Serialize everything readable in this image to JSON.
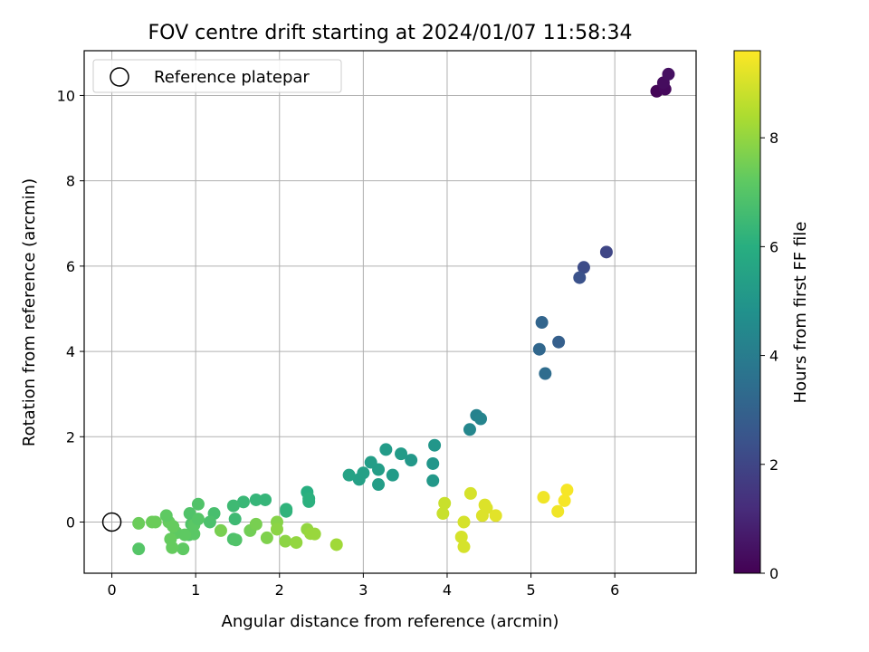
{
  "chart_data": {
    "type": "scatter",
    "title": "FOV centre drift starting at 2024/01/07 11:58:34",
    "xlabel": "Angular distance from reference (arcmin)",
    "ylabel": "Rotation from reference (arcmin)",
    "colorbar_label": "Hours from first FF file",
    "xlim": [
      -0.33,
      6.97
    ],
    "ylim": [
      -1.2,
      11.05
    ],
    "xticks": [
      0,
      1,
      2,
      3,
      4,
      5,
      6
    ],
    "yticks": [
      0,
      2,
      4,
      6,
      8,
      10
    ],
    "colorbar_range": [
      0,
      9.6
    ],
    "colorbar_ticks": [
      0,
      2,
      4,
      6,
      8
    ],
    "colormap": "viridis",
    "grid": true,
    "legend": {
      "placement": "top-left",
      "entries": [
        "Reference platepar"
      ]
    },
    "reference_point": {
      "x": 0,
      "y": 0
    },
    "points": [
      {
        "x": 6.5,
        "y": 10.1,
        "c": 0.1
      },
      {
        "x": 6.6,
        "y": 10.15,
        "c": 0.2
      },
      {
        "x": 6.58,
        "y": 10.3,
        "c": 0.3
      },
      {
        "x": 6.64,
        "y": 10.5,
        "c": 0.4
      },
      {
        "x": 5.9,
        "y": 6.33,
        "c": 2.0
      },
      {
        "x": 5.63,
        "y": 5.97,
        "c": 2.2
      },
      {
        "x": 5.58,
        "y": 5.73,
        "c": 2.4
      },
      {
        "x": 5.33,
        "y": 4.22,
        "c": 2.9
      },
      {
        "x": 5.13,
        "y": 4.68,
        "c": 3.1
      },
      {
        "x": 5.1,
        "y": 4.05,
        "c": 3.2
      },
      {
        "x": 5.17,
        "y": 3.48,
        "c": 3.4
      },
      {
        "x": 4.35,
        "y": 2.5,
        "c": 4.2
      },
      {
        "x": 4.4,
        "y": 2.42,
        "c": 4.3
      },
      {
        "x": 4.27,
        "y": 2.17,
        "c": 4.4
      },
      {
        "x": 3.85,
        "y": 1.8,
        "c": 5.0
      },
      {
        "x": 3.83,
        "y": 1.37,
        "c": 5.0
      },
      {
        "x": 3.83,
        "y": 0.97,
        "c": 5.1
      },
      {
        "x": 3.57,
        "y": 1.45,
        "c": 5.1
      },
      {
        "x": 3.45,
        "y": 1.6,
        "c": 5.2
      },
      {
        "x": 3.27,
        "y": 1.7,
        "c": 5.2
      },
      {
        "x": 3.35,
        "y": 1.1,
        "c": 5.2
      },
      {
        "x": 3.18,
        "y": 1.23,
        "c": 5.3
      },
      {
        "x": 3.18,
        "y": 0.88,
        "c": 5.3
      },
      {
        "x": 3.09,
        "y": 1.4,
        "c": 5.3
      },
      {
        "x": 3.0,
        "y": 1.15,
        "c": 5.4
      },
      {
        "x": 2.95,
        "y": 1.0,
        "c": 5.4
      },
      {
        "x": 2.83,
        "y": 1.1,
        "c": 5.5
      },
      {
        "x": 2.33,
        "y": 0.7,
        "c": 6.0
      },
      {
        "x": 2.35,
        "y": 0.55,
        "c": 6.1
      },
      {
        "x": 2.35,
        "y": 0.48,
        "c": 6.1
      },
      {
        "x": 2.08,
        "y": 0.3,
        "c": 6.2
      },
      {
        "x": 2.08,
        "y": 0.25,
        "c": 6.2
      },
      {
        "x": 1.83,
        "y": 0.52,
        "c": 6.3
      },
      {
        "x": 1.72,
        "y": 0.52,
        "c": 6.3
      },
      {
        "x": 1.57,
        "y": 0.47,
        "c": 6.4
      },
      {
        "x": 1.45,
        "y": 0.38,
        "c": 6.5
      },
      {
        "x": 1.47,
        "y": 0.07,
        "c": 6.5
      },
      {
        "x": 1.45,
        "y": -0.4,
        "c": 6.8
      },
      {
        "x": 1.48,
        "y": -0.42,
        "c": 6.9
      },
      {
        "x": 1.22,
        "y": 0.2,
        "c": 6.7
      },
      {
        "x": 1.17,
        "y": 0.0,
        "c": 6.8
      },
      {
        "x": 1.03,
        "y": 0.42,
        "c": 6.9
      },
      {
        "x": 0.93,
        "y": 0.2,
        "c": 6.9
      },
      {
        "x": 0.95,
        "y": -0.05,
        "c": 6.9
      },
      {
        "x": 0.92,
        "y": -0.3,
        "c": 7.0
      },
      {
        "x": 0.98,
        "y": -0.28,
        "c": 7.1
      },
      {
        "x": 0.98,
        "y": -0.07,
        "c": 7.1
      },
      {
        "x": 1.03,
        "y": 0.07,
        "c": 7.0
      },
      {
        "x": 0.87,
        "y": -0.3,
        "c": 7.2
      },
      {
        "x": 0.85,
        "y": -0.63,
        "c": 7.2
      },
      {
        "x": 0.77,
        "y": -0.25,
        "c": 7.2
      },
      {
        "x": 0.72,
        "y": -0.6,
        "c": 7.3
      },
      {
        "x": 0.7,
        "y": -0.4,
        "c": 7.3
      },
      {
        "x": 0.73,
        "y": -0.1,
        "c": 7.3
      },
      {
        "x": 0.68,
        "y": 0.0,
        "c": 7.3
      },
      {
        "x": 0.65,
        "y": 0.15,
        "c": 7.2
      },
      {
        "x": 0.52,
        "y": 0.0,
        "c": 7.4
      },
      {
        "x": 0.48,
        "y": 0.0,
        "c": 7.4
      },
      {
        "x": 0.32,
        "y": -0.03,
        "c": 7.4
      },
      {
        "x": 0.32,
        "y": -0.63,
        "c": 7.0
      },
      {
        "x": 1.65,
        "y": -0.2,
        "c": 7.5
      },
      {
        "x": 1.72,
        "y": -0.05,
        "c": 7.6
      },
      {
        "x": 1.85,
        "y": -0.37,
        "c": 7.7
      },
      {
        "x": 1.97,
        "y": 0.0,
        "c": 7.8
      },
      {
        "x": 1.97,
        "y": -0.17,
        "c": 7.9
      },
      {
        "x": 2.07,
        "y": -0.45,
        "c": 7.9
      },
      {
        "x": 2.2,
        "y": -0.48,
        "c": 8.0
      },
      {
        "x": 2.33,
        "y": -0.17,
        "c": 8.0
      },
      {
        "x": 2.37,
        "y": -0.27,
        "c": 8.1
      },
      {
        "x": 2.42,
        "y": -0.28,
        "c": 8.1
      },
      {
        "x": 1.3,
        "y": -0.2,
        "c": 7.6
      },
      {
        "x": 2.68,
        "y": -0.53,
        "c": 8.2
      },
      {
        "x": 3.97,
        "y": 0.44,
        "c": 8.8
      },
      {
        "x": 3.95,
        "y": 0.2,
        "c": 8.8
      },
      {
        "x": 4.28,
        "y": 0.67,
        "c": 9.0
      },
      {
        "x": 4.2,
        "y": 0.0,
        "c": 9.0
      },
      {
        "x": 4.17,
        "y": -0.35,
        "c": 9.0
      },
      {
        "x": 4.2,
        "y": -0.58,
        "c": 9.0
      },
      {
        "x": 4.45,
        "y": 0.4,
        "c": 9.1
      },
      {
        "x": 4.47,
        "y": 0.33,
        "c": 9.1
      },
      {
        "x": 4.42,
        "y": 0.15,
        "c": 9.1
      },
      {
        "x": 4.58,
        "y": 0.15,
        "c": 9.2
      },
      {
        "x": 5.15,
        "y": 0.58,
        "c": 9.4
      },
      {
        "x": 5.43,
        "y": 0.75,
        "c": 9.5
      },
      {
        "x": 5.4,
        "y": 0.5,
        "c": 9.5
      },
      {
        "x": 5.32,
        "y": 0.25,
        "c": 9.4
      }
    ]
  }
}
